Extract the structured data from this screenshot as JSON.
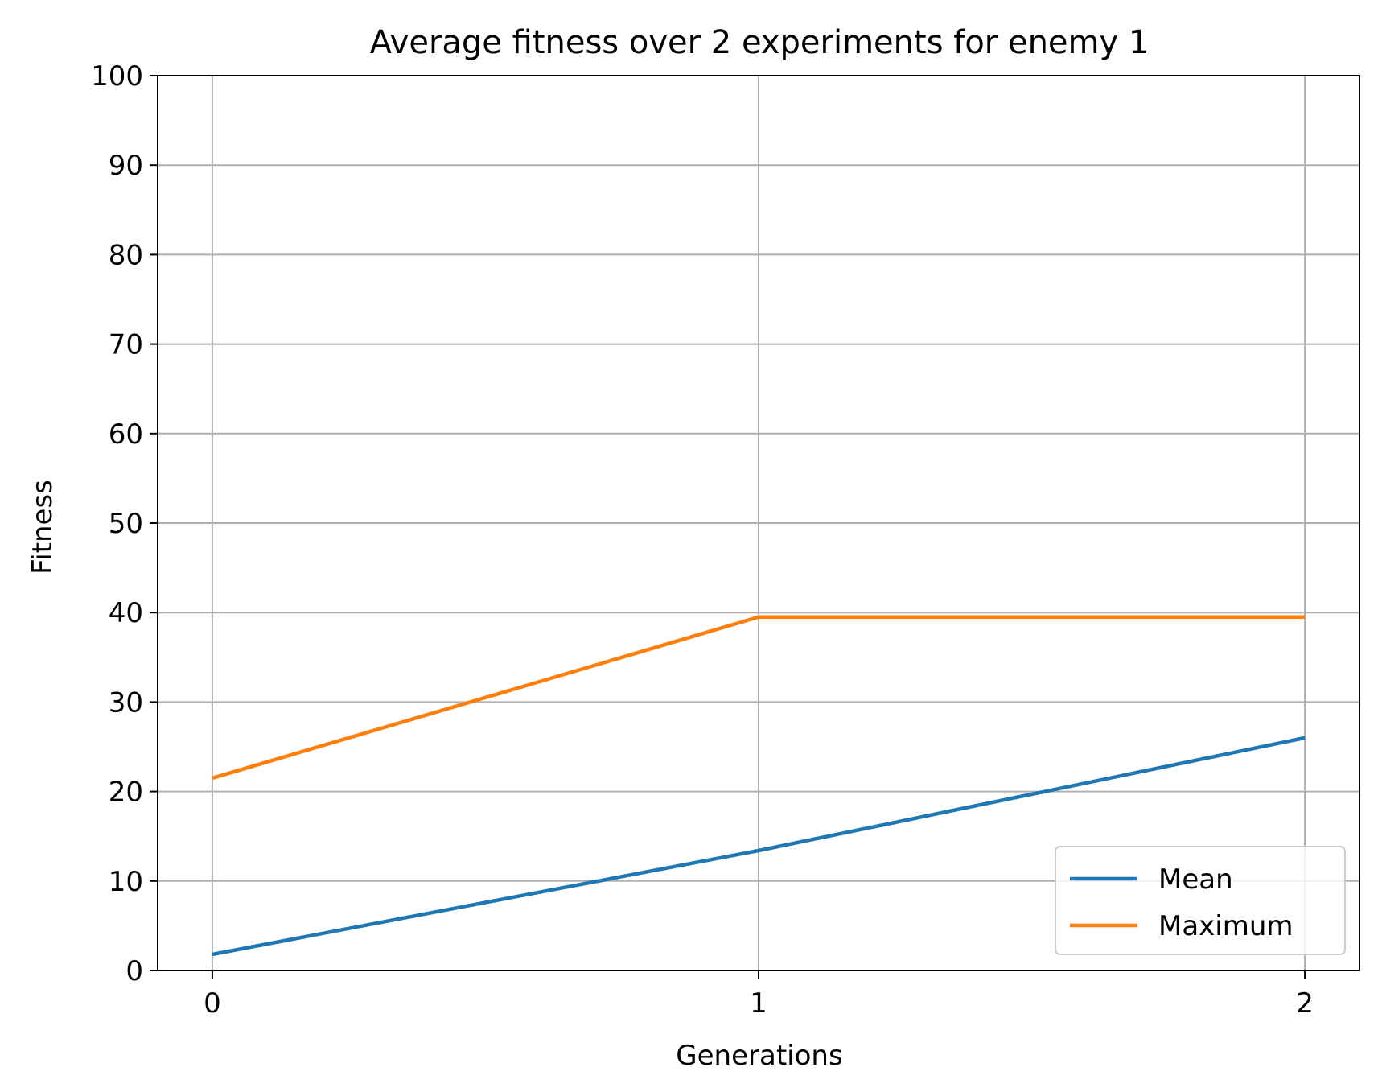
{
  "chart_data": {
    "type": "line",
    "title": "Average fitness over 2 experiments for enemy 1",
    "xlabel": "Generations",
    "ylabel": "Fitness",
    "x": [
      0,
      1,
      2
    ],
    "xticks": [
      "0",
      "1",
      "2"
    ],
    "xlim": [
      -0.1,
      2.1
    ],
    "ylim": [
      0,
      100
    ],
    "yticks": [
      "0",
      "10",
      "20",
      "30",
      "40",
      "50",
      "60",
      "70",
      "80",
      "90",
      "100"
    ],
    "grid": true,
    "legend_position": "bottom-right",
    "series": [
      {
        "name": "Mean",
        "values": [
          1.8,
          13.4,
          26.0
        ],
        "color": "#1f77b4"
      },
      {
        "name": "Maximum",
        "values": [
          21.5,
          39.5,
          39.5
        ],
        "color": "#ff7f0e"
      }
    ]
  }
}
